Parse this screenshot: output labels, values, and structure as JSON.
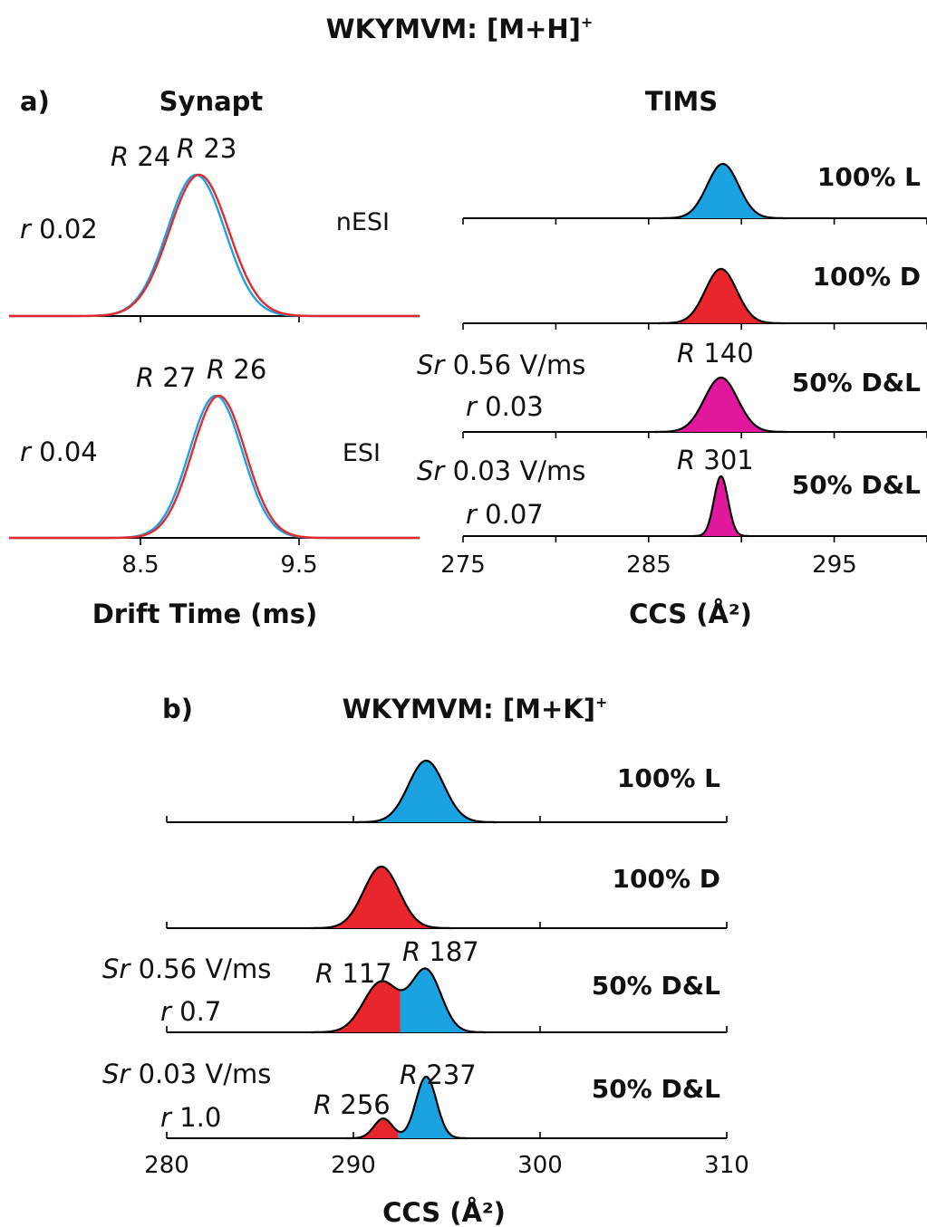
{
  "colors": {
    "L": "#1aa3e0",
    "D": "#e8262b",
    "mix": "#e1189b",
    "axis": "#000000"
  },
  "chart_data": [
    {
      "id": "a_synapt_nesi",
      "type": "line",
      "panel": "a)",
      "figure_title": "WKYMVM: [M+H]",
      "figure_title_sup": "+",
      "title": "Synapt",
      "xlabel": "Drift Time (ms)",
      "condition": "nESI",
      "x_range": [
        7.5,
        10.2
      ],
      "series": [
        {
          "color": "L",
          "center": 8.73,
          "sigma": 0.19,
          "peak": 1.0
        },
        {
          "color": "D",
          "center": 8.75,
          "sigma": 0.195,
          "peak": 1.0
        }
      ],
      "annotations": [
        {
          "type": "R",
          "value": "24",
          "series": 0
        },
        {
          "type": "R",
          "value": "23",
          "series": 1
        },
        {
          "type": "r",
          "value": "0.02"
        }
      ]
    },
    {
      "id": "a_synapt_esi",
      "type": "line",
      "condition": "ESI",
      "x_range": [
        7.5,
        10.2
      ],
      "xticks": [
        8.5,
        9.5
      ],
      "xtick_labels": [
        "8.5",
        "9.5"
      ],
      "series": [
        {
          "color": "L",
          "center": 8.86,
          "sigma": 0.175,
          "peak": 1.0
        },
        {
          "color": "D",
          "center": 8.88,
          "sigma": 0.175,
          "peak": 1.0
        }
      ],
      "annotations": [
        {
          "type": "R",
          "value": "27",
          "series": 0
        },
        {
          "type": "R",
          "value": "26",
          "series": 1
        },
        {
          "type": "r",
          "value": "0.04"
        }
      ]
    },
    {
      "id": "a_tims",
      "type": "area",
      "title": "TIMS",
      "xlabel": "CCS (Å²)",
      "x_range": [
        275,
        300
      ],
      "xticks": [
        275,
        280,
        285,
        290,
        295,
        300
      ],
      "xtick_labels": [
        "275",
        "",
        "285",
        "",
        "295",
        ""
      ],
      "rows": [
        {
          "label": "100% L",
          "peaks": [
            {
              "color": "L",
              "center": 289.0,
              "sigma": 0.85,
              "peak": 1.0
            }
          ]
        },
        {
          "label": "100% D",
          "peaks": [
            {
              "color": "D",
              "center": 288.9,
              "sigma": 0.85,
              "peak": 1.0
            }
          ]
        },
        {
          "label": "50% D&L",
          "sr": "0.56 V/ms",
          "r": "0.03",
          "R": "140",
          "peaks": [
            {
              "color": "mix",
              "center": 288.9,
              "sigma": 0.9,
              "peak": 1.0
            }
          ]
        },
        {
          "label": "50% D&L",
          "sr": "0.03 V/ms",
          "r": "0.07",
          "R": "301",
          "peaks": [
            {
              "color": "mix",
              "center": 288.9,
              "sigma": 0.38,
              "peak": 1.1
            }
          ]
        }
      ]
    },
    {
      "id": "b_tims",
      "type": "area",
      "panel": "b)",
      "figure_title": "WKYMVM: [M+K]",
      "figure_title_sup": "+",
      "xlabel": "CCS (Å²)",
      "x_range": [
        280,
        310
      ],
      "xticks": [
        280,
        290,
        300,
        310
      ],
      "xtick_labels": [
        "280",
        "290",
        "300",
        "310"
      ],
      "rows": [
        {
          "label": "100% L",
          "peaks": [
            {
              "color": "L",
              "center": 293.9,
              "sigma": 0.95,
              "peak": 1.0
            }
          ]
        },
        {
          "label": "100% D",
          "peaks": [
            {
              "color": "D",
              "center": 291.5,
              "sigma": 0.95,
              "peak": 1.0
            }
          ]
        },
        {
          "label": "50% D&L",
          "sr": "0.56 V/ms",
          "r": "0.7",
          "R_left": "117",
          "R_right": "187",
          "split": 292.5,
          "peaks": [
            {
              "color": "D",
              "center": 291.5,
              "sigma": 0.95,
              "peak": 0.82
            },
            {
              "color": "L",
              "center": 293.9,
              "sigma": 0.8,
              "peak": 1.0
            }
          ]
        },
        {
          "label": "50% D&L",
          "sr": "0.03 V/ms",
          "r": "1.0",
          "R_left": "256",
          "R_right": "237",
          "split": 292.4,
          "peaks": [
            {
              "color": "D",
              "center": 291.6,
              "sigma": 0.5,
              "peak": 0.32
            },
            {
              "color": "L",
              "center": 293.9,
              "sigma": 0.55,
              "peak": 1.0
            }
          ]
        }
      ]
    }
  ]
}
